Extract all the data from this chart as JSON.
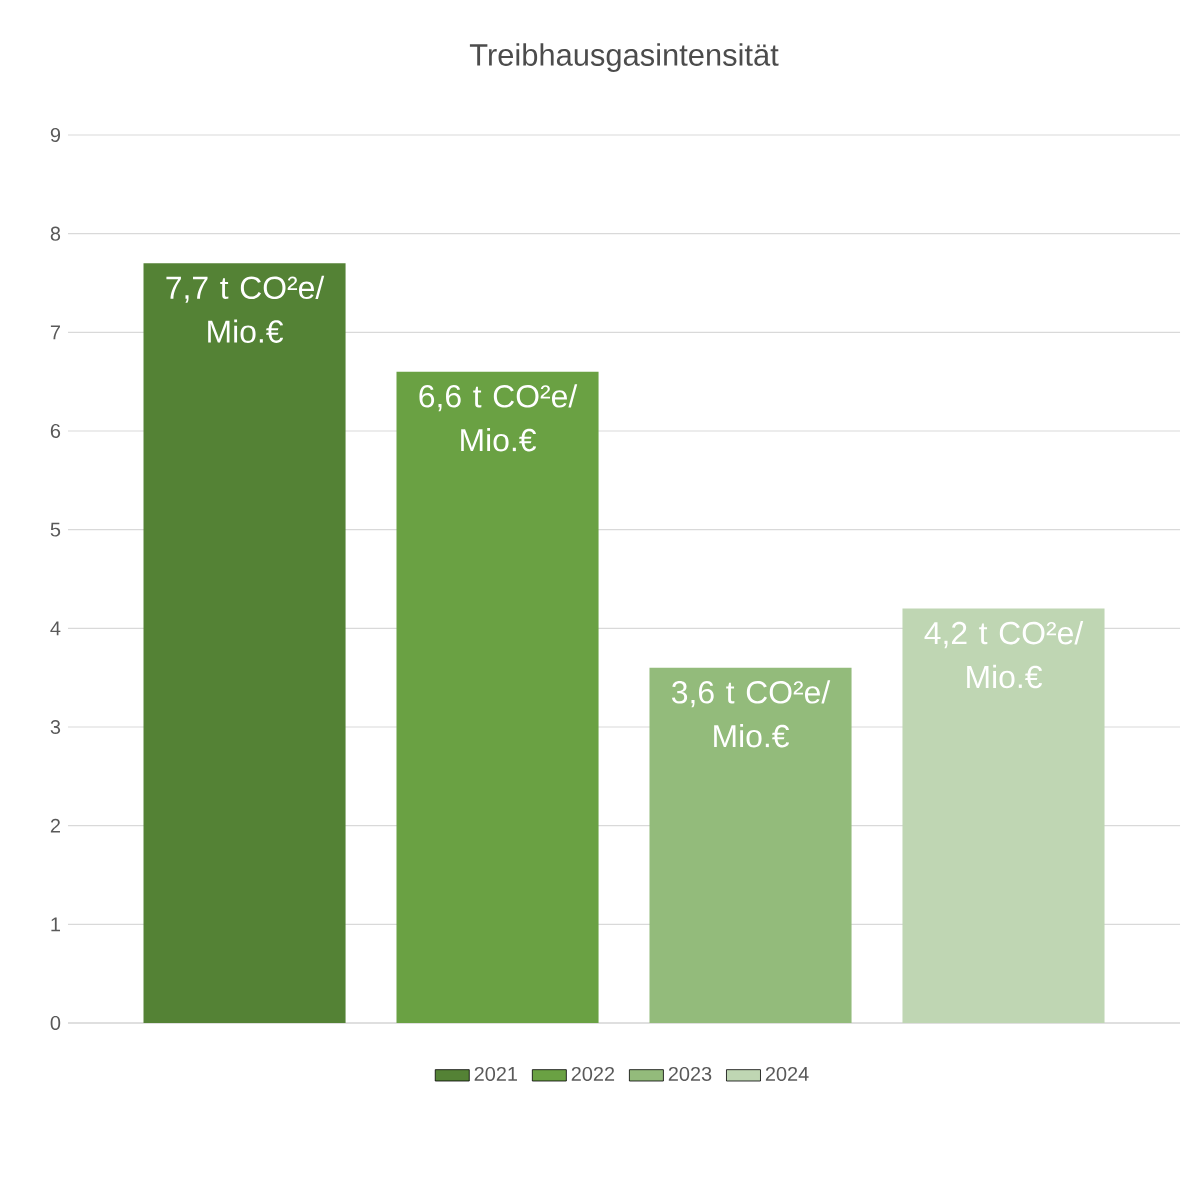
{
  "chart_data": {
    "type": "bar",
    "title": "Treibhausgasintensität",
    "categories": [
      null
    ],
    "series": [
      {
        "name": "2021",
        "color": "#548235",
        "values": [
          7.7
        ],
        "value_labels": [
          "7,7 t CO²e/ Mio.€"
        ]
      },
      {
        "name": "2022",
        "color": "#6aa143",
        "values": [
          6.6
        ],
        "value_labels": [
          "6,6 t CO²e/ Mio.€"
        ]
      },
      {
        "name": "2023",
        "color": "#93bb7b",
        "values": [
          3.6
        ],
        "value_labels": [
          "3,6 t CO²e/ Mio.€"
        ]
      },
      {
        "name": "2024",
        "color": "#bfd6b3",
        "values": [
          4.2
        ],
        "value_labels": [
          "4,2 t CO²e/ Mio.€"
        ]
      }
    ],
    "ylim": [
      0,
      9
    ],
    "yticks": [
      0,
      1,
      2,
      3,
      4,
      5,
      6,
      7,
      8,
      9
    ],
    "grid": "y",
    "legend": "bottom"
  }
}
